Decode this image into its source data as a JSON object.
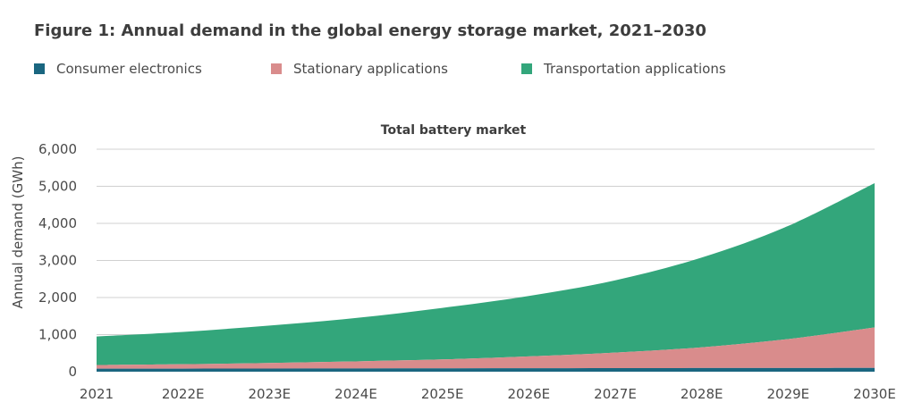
{
  "figure_title": "Figure 1: Annual demand in the global energy storage market, 2021–2030",
  "colors": {
    "consumer": "#1a6680",
    "stationary": "#d98c8c",
    "transportation": "#33a67b",
    "grid": "#d0d0d0",
    "axis_text": "#4a4a4a"
  },
  "chart_data": {
    "type": "area",
    "stacked": true,
    "title": "Total battery market",
    "ylabel": "Annual demand (GWh)",
    "xlabel": "",
    "categories": [
      "2021",
      "2022E",
      "2023E",
      "2024E",
      "2025E",
      "2026E",
      "2027E",
      "2028E",
      "2029E",
      "2030E"
    ],
    "yticks": [
      "0",
      "1,000",
      "2,000",
      "3,000",
      "4,000",
      "5,000",
      "6,000"
    ],
    "ylim": [
      0,
      6000
    ],
    "grid": true,
    "legend_position": "top-left",
    "series": [
      {
        "name": "Consumer electronics",
        "color": "#1a6680",
        "values": [
          80,
          82,
          85,
          88,
          90,
          92,
          95,
          98,
          100,
          103
        ]
      },
      {
        "name": "Stationary applications",
        "color": "#d98c8c",
        "values": [
          100,
          120,
          150,
          190,
          240,
          320,
          420,
          560,
          780,
          1090
        ]
      },
      {
        "name": "Transportation applications",
        "color": "#33a67b",
        "values": [
          770,
          870,
          1010,
          1170,
          1390,
          1630,
          1950,
          2420,
          3050,
          3890
        ]
      }
    ]
  }
}
